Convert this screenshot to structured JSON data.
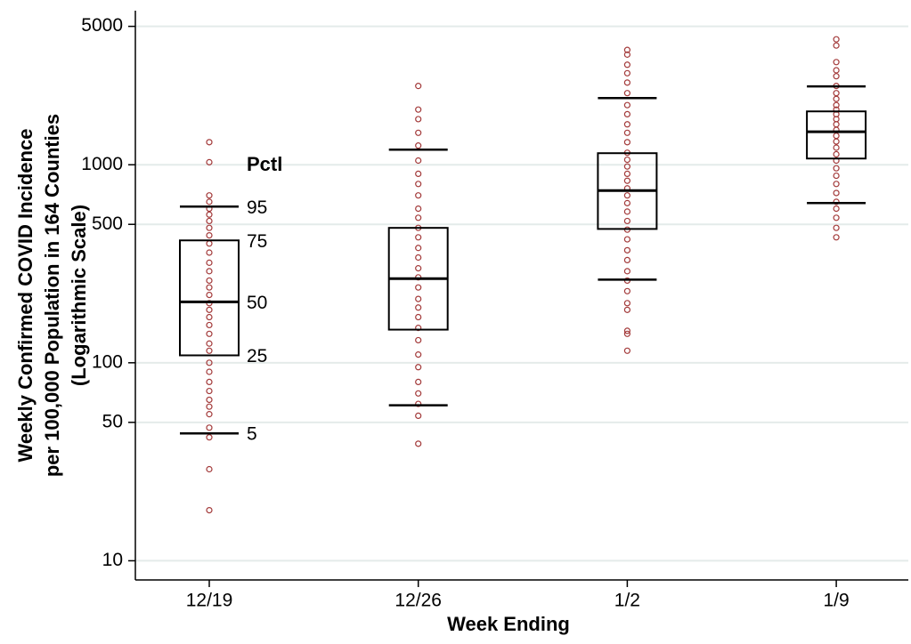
{
  "chart_data": {
    "type": "boxplot",
    "ylabel": [
      "Weekly Confirmed COVID Incidence",
      "per 100,000 Population in 164 Counties",
      "(Logarithmic Scale)"
    ],
    "xlabel": "Week Ending",
    "categories": [
      "12/19",
      "12/26",
      "1/2",
      "1/9"
    ],
    "log_scale": true,
    "ylim": [
      8,
      6000
    ],
    "yticks": [
      10,
      50,
      100,
      500,
      1000,
      5000
    ],
    "grid": true,
    "point_color": "#a33a3a",
    "box_color": "#000000",
    "boxes": [
      {
        "p5": 44,
        "p25": 109,
        "median": 203,
        "p75": 415,
        "p95": 615
      },
      {
        "p5": 61,
        "p25": 147,
        "median": 266,
        "p75": 480,
        "p95": 1192
      },
      {
        "p5": 263,
        "p25": 474,
        "median": 741,
        "p75": 1144,
        "p95": 2173
      },
      {
        "p5": 641,
        "p25": 1075,
        "median": 1467,
        "p75": 1860,
        "p95": 2487
      }
    ],
    "points": [
      [
        18,
        29,
        42,
        47,
        55,
        60,
        65,
        72,
        80,
        90,
        100,
        115,
        125,
        140,
        155,
        170,
        185,
        200,
        220,
        240,
        260,
        290,
        320,
        360,
        400,
        440,
        480,
        520,
        560,
        600,
        650,
        700,
        1030,
        1300
      ],
      [
        39,
        54,
        62,
        70,
        80,
        95,
        110,
        130,
        150,
        170,
        190,
        210,
        240,
        270,
        300,
        340,
        380,
        430,
        480,
        540,
        600,
        700,
        800,
        900,
        1050,
        1250,
        1450,
        1700,
        1900,
        2500
      ],
      [
        115,
        140,
        145,
        185,
        200,
        230,
        260,
        290,
        330,
        370,
        420,
        470,
        520,
        580,
        640,
        700,
        760,
        830,
        900,
        980,
        1060,
        1150,
        1300,
        1450,
        1600,
        1800,
        2000,
        2300,
        2600,
        2900,
        3200,
        3600,
        3800
      ],
      [
        430,
        480,
        540,
        600,
        650,
        720,
        800,
        880,
        960,
        1050,
        1130,
        1220,
        1310,
        1400,
        1500,
        1600,
        1700,
        1800,
        1900,
        2000,
        2150,
        2300,
        2500,
        2800,
        3000,
        3300,
        4000,
        4300
      ]
    ],
    "percentile_title": "Pctl",
    "percentile_labels": [
      "5",
      "25",
      "50",
      "75",
      "95"
    ]
  }
}
